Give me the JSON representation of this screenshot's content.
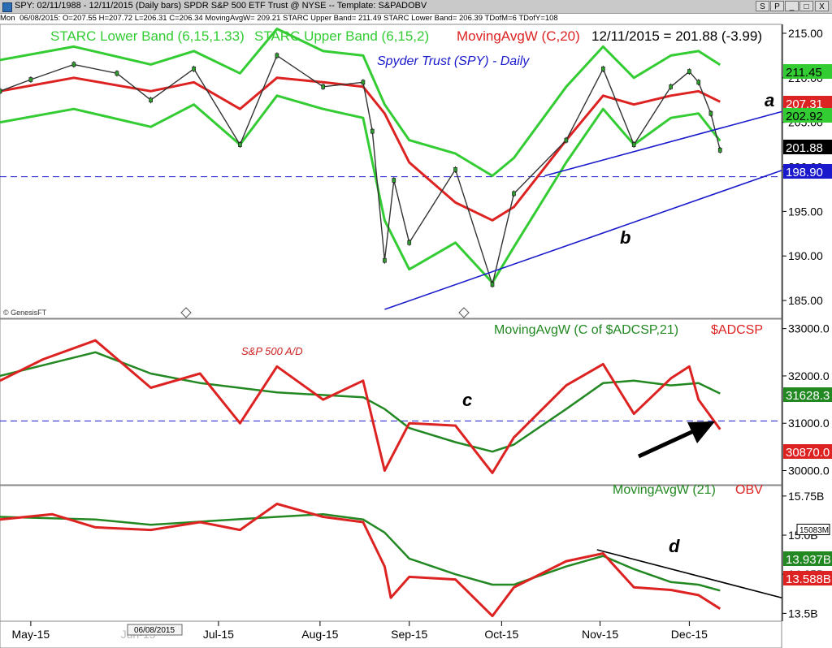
{
  "window": {
    "title": "SPY: 02/11/1988 - 12/11/2015 (Daily bars)  SPDR S&P 500 ETF Trust @ NYSE  --  Template: S&PADOBV",
    "buttons": [
      "S",
      "P",
      "_",
      "□",
      "X"
    ]
  },
  "infobar": {
    "day": "Mon",
    "values": "06/08/2015:  O=207.55  H=207.72  L=206.31  C=206.34  MovingAvgW= 209.21  STARC Upper Band= 211.49  STARC Lower Band= 206.39  TDofM=6  TDofY=108"
  },
  "colors": {
    "price": "#333333",
    "starc": "#33cc33",
    "mavg_red": "#dd2222",
    "mavg_green": "#228822",
    "trendline": "#1a1acc",
    "ad_line": "#dd2222",
    "obv_line": "#dd2222"
  },
  "x_axis": {
    "labels": [
      {
        "text": "May-15",
        "date": "2015-05-01"
      },
      {
        "text": "Jul-15",
        "date": "2015-07-01"
      },
      {
        "text": "Aug-15",
        "date": "2015-08-03"
      },
      {
        "text": "Sep-15",
        "date": "2015-09-01"
      },
      {
        "text": "Oct-15",
        "date": "2015-10-01"
      },
      {
        "text": "Nov-15",
        "date": "2015-11-02"
      },
      {
        "text": "Dec-15",
        "date": "2015-12-01"
      }
    ],
    "cursor_date": "06/08/2015",
    "faint_label": "Jun-15"
  },
  "panels": {
    "price": {
      "legend": {
        "starc_lower": "STARC Lower Band (6,15,1.33)",
        "starc_upper": "STARC Upper Band (6,15,2)",
        "mavg": "MovingAvgW (C,20)",
        "last": "12/11/2015 = 201.88 (-3.99)"
      },
      "subtitle": "Spyder Trust (SPY) - Daily",
      "watermark": "© GenesisFT",
      "ticks": [
        "215.00",
        "210.00",
        "205.00",
        "200.00",
        "195.00",
        "190.00",
        "185.00"
      ],
      "tick_values": [
        215,
        210,
        205,
        200,
        195,
        190,
        185
      ],
      "value_tags": [
        {
          "text": "211.45",
          "value": 211.45,
          "bg": "#33cc33",
          "fg": "#000000"
        },
        {
          "text": "207.31",
          "value": 207.31,
          "bg": "#dd2222",
          "fg": "#ffffff"
        },
        {
          "text": "202.92",
          "value": 202.92,
          "bg": "#33cc33",
          "fg": "#000000"
        },
        {
          "text": "201.88",
          "value": 201.88,
          "bg": "#000000",
          "fg": "#ffffff"
        },
        {
          "text": "198.90",
          "value": 198.9,
          "bg": "#1a1acc",
          "fg": "#ffffff"
        }
      ],
      "support_value": 198.9,
      "annotations": [
        "a",
        "b"
      ]
    },
    "ad": {
      "legend": {
        "mavg": "MovingAvgW (C of $ADCSP,21)",
        "symbol": "$ADCSP"
      },
      "subtitle": "S&P 500 A/D",
      "ticks": [
        "33000.0",
        "32000.0",
        "31000.0",
        "30000.0"
      ],
      "tick_values": [
        33000,
        32000,
        31000,
        30000
      ],
      "value_tags": [
        {
          "text": "31628.3",
          "value": 31628.3,
          "bg": "#228822",
          "fg": "#ffffff"
        },
        {
          "text": "30870.0",
          "value": 30870.0,
          "bg": "#dd2222",
          "fg": "#ffffff"
        }
      ],
      "reference_value": 31050,
      "annotations": [
        "c"
      ]
    },
    "obv": {
      "legend": {
        "mavg": "MovingAvgW (21)",
        "symbol": "OBV"
      },
      "ticks": [
        "15.75B",
        "15.0B",
        "14.25B",
        "13.5B"
      ],
      "tick_values": [
        15.75,
        15.0,
        14.25,
        13.5
      ],
      "value_tags": [
        {
          "text": "15083M",
          "value": 15.083,
          "bg": "#ffffff",
          "fg": "#000000"
        },
        {
          "text": "13.937B",
          "value": 13.937,
          "bg": "#228822",
          "fg": "#ffffff"
        },
        {
          "text": "13.588B",
          "value": 13.588,
          "bg": "#dd2222",
          "fg": "#ffffff"
        }
      ],
      "annotations": [
        "d"
      ]
    }
  },
  "chart_data": [
    {
      "type": "line",
      "title": "Spyder Trust (SPY) - Daily",
      "x_range": [
        "2015-04-21",
        "2015-12-31"
      ],
      "ylim": [
        183,
        216
      ],
      "series": [
        {
          "name": "Close",
          "points": [
            [
              "2015-04-21",
              208.5
            ],
            [
              "2015-05-01",
              209.8
            ],
            [
              "2015-05-15",
              211.5
            ],
            [
              "2015-05-29",
              210.5
            ],
            [
              "2015-06-09",
              207.5
            ],
            [
              "2015-06-23",
              211.0
            ],
            [
              "2015-07-08",
              202.5
            ],
            [
              "2015-07-20",
              212.5
            ],
            [
              "2015-08-04",
              209.0
            ],
            [
              "2015-08-17",
              209.5
            ],
            [
              "2015-08-20",
              204.0
            ],
            [
              "2015-08-24",
              189.5
            ],
            [
              "2015-08-27",
              198.5
            ],
            [
              "2015-09-01",
              191.5
            ],
            [
              "2015-09-16",
              199.7
            ],
            [
              "2015-09-28",
              186.8
            ],
            [
              "2015-10-05",
              197.0
            ],
            [
              "2015-10-22",
              203.0
            ],
            [
              "2015-11-03",
              211.0
            ],
            [
              "2015-11-13",
              202.5
            ],
            [
              "2015-11-25",
              209.0
            ],
            [
              "2015-12-01",
              210.7
            ],
            [
              "2015-12-04",
              209.5
            ],
            [
              "2015-12-08",
              206.0
            ],
            [
              "2015-12-11",
              201.88
            ]
          ]
        },
        {
          "name": "STARC Upper Band (6,15,2)",
          "points": [
            [
              "2015-04-21",
              212.0
            ],
            [
              "2015-05-15",
              213.5
            ],
            [
              "2015-06-09",
              211.5
            ],
            [
              "2015-06-23",
              213.0
            ],
            [
              "2015-07-08",
              210.5
            ],
            [
              "2015-07-20",
              215.5
            ],
            [
              "2015-08-04",
              213.0
            ],
            [
              "2015-08-17",
              212.5
            ],
            [
              "2015-08-24",
              207.0
            ],
            [
              "2015-09-01",
              203.0
            ],
            [
              "2015-09-16",
              201.5
            ],
            [
              "2015-09-28",
              199.0
            ],
            [
              "2015-10-05",
              201.0
            ],
            [
              "2015-10-22",
              209.0
            ],
            [
              "2015-11-03",
              213.5
            ],
            [
              "2015-11-13",
              210.0
            ],
            [
              "2015-11-25",
              212.5
            ],
            [
              "2015-12-04",
              213.0
            ],
            [
              "2015-12-11",
              211.45
            ]
          ]
        },
        {
          "name": "STARC Lower Band (6,15,1.33)",
          "points": [
            [
              "2015-04-21",
              205.0
            ],
            [
              "2015-05-15",
              206.5
            ],
            [
              "2015-06-09",
              204.5
            ],
            [
              "2015-06-23",
              207.0
            ],
            [
              "2015-07-08",
              202.5
            ],
            [
              "2015-07-20",
              208.0
            ],
            [
              "2015-08-04",
              206.5
            ],
            [
              "2015-08-17",
              205.5
            ],
            [
              "2015-08-24",
              194.0
            ],
            [
              "2015-09-01",
              188.5
            ],
            [
              "2015-09-16",
              191.5
            ],
            [
              "2015-09-28",
              187.0
            ],
            [
              "2015-10-05",
              191.0
            ],
            [
              "2015-10-22",
              200.5
            ],
            [
              "2015-11-03",
              206.5
            ],
            [
              "2015-11-13",
              202.5
            ],
            [
              "2015-11-25",
              205.5
            ],
            [
              "2015-12-04",
              206.0
            ],
            [
              "2015-12-11",
              202.92
            ]
          ]
        },
        {
          "name": "MovingAvgW (C,20)",
          "points": [
            [
              "2015-04-21",
              208.5
            ],
            [
              "2015-05-15",
              210.0
            ],
            [
              "2015-06-09",
              208.5
            ],
            [
              "2015-06-23",
              209.5
            ],
            [
              "2015-07-08",
              206.5
            ],
            [
              "2015-07-20",
              210.0
            ],
            [
              "2015-08-04",
              209.5
            ],
            [
              "2015-08-17",
              209.0
            ],
            [
              "2015-08-24",
              206.0
            ],
            [
              "2015-09-01",
              200.5
            ],
            [
              "2015-09-16",
              196.0
            ],
            [
              "2015-09-28",
              194.0
            ],
            [
              "2015-10-05",
              195.5
            ],
            [
              "2015-10-22",
              203.0
            ],
            [
              "2015-11-03",
              208.0
            ],
            [
              "2015-11-13",
              207.0
            ],
            [
              "2015-11-25",
              208.0
            ],
            [
              "2015-12-04",
              208.5
            ],
            [
              "2015-12-11",
              207.31
            ]
          ]
        }
      ],
      "trendlines": [
        {
          "label": "a",
          "from": [
            "2015-10-15",
            199.0
          ],
          "to": [
            "2015-12-31",
            206.2
          ]
        },
        {
          "label": "b",
          "from": [
            "2015-08-24",
            184.0
          ],
          "to": [
            "2015-12-31",
            199.6
          ]
        }
      ]
    },
    {
      "type": "line",
      "title": "S&P 500 A/D",
      "x_range": [
        "2015-04-21",
        "2015-12-31"
      ],
      "ylim": [
        29700,
        33200
      ],
      "series": [
        {
          "name": "$ADCSP",
          "points": [
            [
              "2015-04-21",
              31900
            ],
            [
              "2015-05-05",
              32350
            ],
            [
              "2015-05-22",
              32750
            ],
            [
              "2015-06-09",
              31750
            ],
            [
              "2015-06-25",
              32050
            ],
            [
              "2015-07-08",
              31000
            ],
            [
              "2015-07-20",
              32200
            ],
            [
              "2015-08-04",
              31500
            ],
            [
              "2015-08-17",
              31900
            ],
            [
              "2015-08-24",
              30000
            ],
            [
              "2015-09-01",
              31000
            ],
            [
              "2015-09-16",
              30950
            ],
            [
              "2015-09-28",
              29950
            ],
            [
              "2015-10-05",
              30700
            ],
            [
              "2015-10-22",
              31800
            ],
            [
              "2015-11-03",
              32250
            ],
            [
              "2015-11-13",
              31200
            ],
            [
              "2015-11-25",
              31950
            ],
            [
              "2015-12-01",
              32200
            ],
            [
              "2015-12-04",
              31500
            ],
            [
              "2015-12-11",
              30870
            ]
          ]
        },
        {
          "name": "MovingAvgW (C of $ADCSP,21)",
          "points": [
            [
              "2015-04-21",
              32000
            ],
            [
              "2015-05-22",
              32500
            ],
            [
              "2015-06-09",
              32050
            ],
            [
              "2015-06-25",
              31850
            ],
            [
              "2015-07-20",
              31650
            ],
            [
              "2015-08-17",
              31550
            ],
            [
              "2015-08-24",
              31300
            ],
            [
              "2015-09-01",
              30900
            ],
            [
              "2015-09-16",
              30600
            ],
            [
              "2015-09-28",
              30400
            ],
            [
              "2015-10-05",
              30550
            ],
            [
              "2015-10-22",
              31300
            ],
            [
              "2015-11-03",
              31850
            ],
            [
              "2015-11-13",
              31900
            ],
            [
              "2015-11-25",
              31800
            ],
            [
              "2015-12-04",
              31850
            ],
            [
              "2015-12-11",
              31628.3
            ]
          ]
        }
      ]
    },
    {
      "type": "line",
      "title": "",
      "x_range": [
        "2015-04-21",
        "2015-12-31"
      ],
      "ylim": [
        13.35,
        15.95
      ],
      "series": [
        {
          "name": "OBV",
          "points": [
            [
              "2015-04-21",
              15.3
            ],
            [
              "2015-05-08",
              15.4
            ],
            [
              "2015-05-22",
              15.15
            ],
            [
              "2015-06-09",
              15.1
            ],
            [
              "2015-06-25",
              15.25
            ],
            [
              "2015-07-08",
              15.1
            ],
            [
              "2015-07-20",
              15.6
            ],
            [
              "2015-08-04",
              15.35
            ],
            [
              "2015-08-17",
              15.25
            ],
            [
              "2015-08-24",
              14.4
            ],
            [
              "2015-08-26",
              13.8
            ],
            [
              "2015-09-01",
              14.2
            ],
            [
              "2015-09-16",
              14.15
            ],
            [
              "2015-09-28",
              13.45
            ],
            [
              "2015-10-05",
              14.0
            ],
            [
              "2015-10-22",
              14.5
            ],
            [
              "2015-11-03",
              14.65
            ],
            [
              "2015-11-13",
              14.0
            ],
            [
              "2015-11-25",
              13.95
            ],
            [
              "2015-12-04",
              13.85
            ],
            [
              "2015-12-11",
              13.588
            ]
          ]
        },
        {
          "name": "MovingAvgW (21)",
          "points": [
            [
              "2015-04-21",
              15.35
            ],
            [
              "2015-05-22",
              15.3
            ],
            [
              "2015-06-09",
              15.2
            ],
            [
              "2015-07-20",
              15.35
            ],
            [
              "2015-08-04",
              15.4
            ],
            [
              "2015-08-17",
              15.3
            ],
            [
              "2015-08-24",
              15.05
            ],
            [
              "2015-09-01",
              14.55
            ],
            [
              "2015-09-16",
              14.25
            ],
            [
              "2015-09-28",
              14.05
            ],
            [
              "2015-10-05",
              14.05
            ],
            [
              "2015-10-22",
              14.4
            ],
            [
              "2015-11-03",
              14.6
            ],
            [
              "2015-11-13",
              14.35
            ],
            [
              "2015-11-25",
              14.1
            ],
            [
              "2015-12-04",
              14.05
            ],
            [
              "2015-12-11",
              13.937
            ]
          ]
        }
      ],
      "trendlines": [
        {
          "label": "d",
          "from": [
            "2015-11-01",
            14.72
          ],
          "to": [
            "2015-12-31",
            13.8
          ]
        }
      ]
    }
  ]
}
